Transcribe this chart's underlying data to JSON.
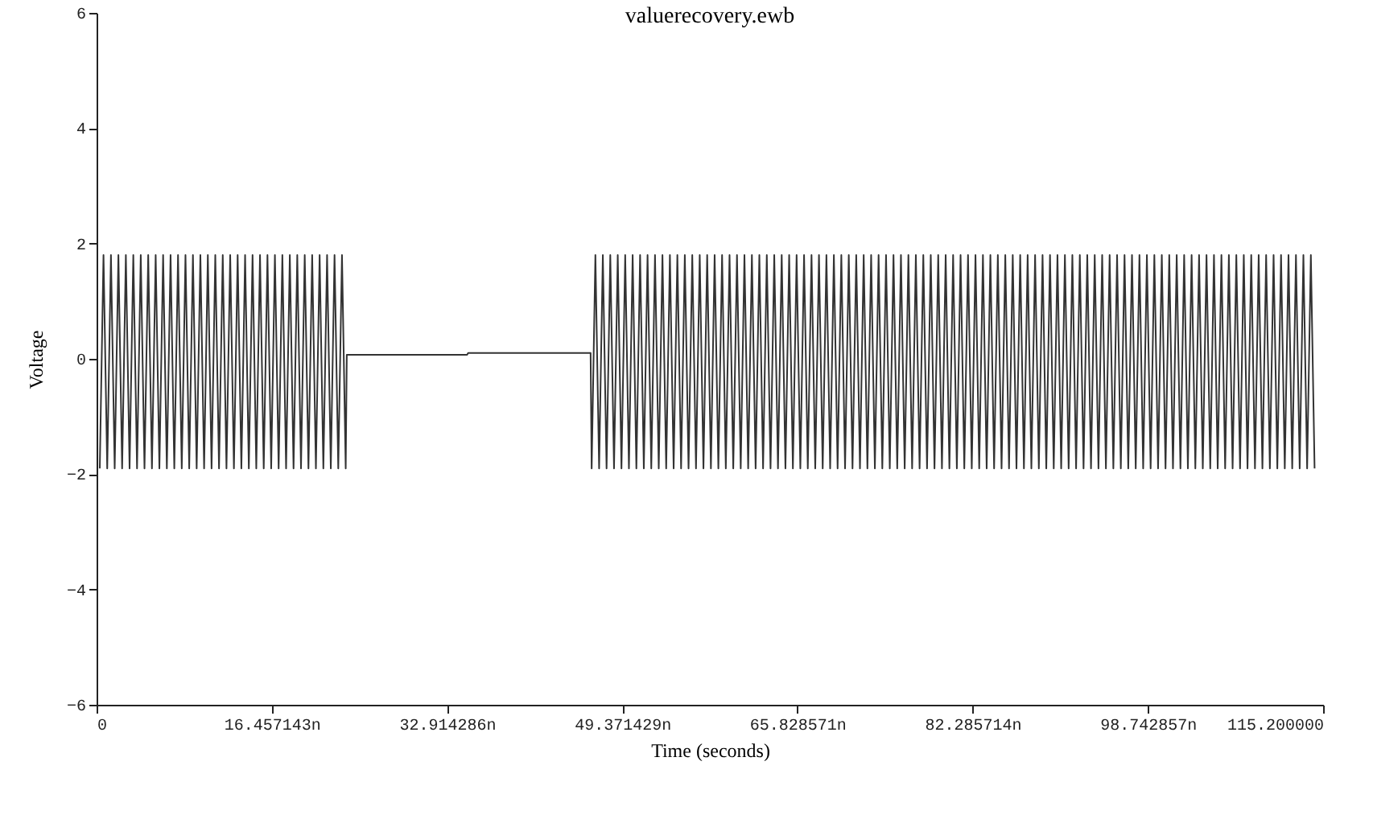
{
  "chart_data": {
    "type": "line",
    "title": "valuerecovery.ewb",
    "xlabel": "Time (seconds)",
    "ylabel": "Voltage",
    "xlim": [
      0,
      115.2
    ],
    "xticks": [
      0,
      {
        "value": 16.457143,
        "label": "16.457143n"
      },
      {
        "value": 32.914286,
        "label": "32.914286n"
      },
      {
        "value": 49.371429,
        "label": "49.371429n"
      },
      {
        "value": 65.828571,
        "label": "65.828571n"
      },
      {
        "value": 82.285714,
        "label": "82.285714n"
      },
      {
        "value": 98.742857,
        "label": "98.742857n"
      },
      {
        "value": 115.2,
        "label": "115.200000"
      }
    ],
    "ylim": [
      -6,
      6
    ],
    "yticks": [
      -6,
      -4,
      -2,
      0,
      2,
      4,
      6
    ],
    "grid": false,
    "series": [
      {
        "color": "#333333",
        "x": [
          0.3,
          0.65,
          1,
          1.35,
          1.7,
          2.05,
          2.4,
          2.75,
          3.1,
          3.45,
          3.8,
          4.15,
          4.5,
          4.85,
          5.2,
          5.55,
          5.9,
          6.25,
          6.6,
          6.95,
          7.3,
          7.65,
          8,
          8.35,
          8.7,
          9.05,
          9.4,
          9.75,
          10.1,
          10.45,
          10.8,
          11.15,
          11.5,
          11.85,
          12.2,
          12.55,
          12.9,
          13.25,
          13.6,
          13.95,
          14.3,
          14.65,
          15,
          15.35,
          15.7,
          16.05,
          16.4,
          16.75,
          17.1,
          17.45,
          17.8,
          18.15,
          18.5,
          18.85,
          19.2,
          19.55,
          19.9,
          20.25,
          20.6,
          20.95,
          21.3,
          21.65,
          22,
          22.35,
          22.7,
          23.05,
          23.4,
          23.5,
          34.8,
          34.9,
          46.4,
          46.5,
          46.85,
          47.2,
          47.55,
          47.9,
          48.25,
          48.6,
          48.95,
          49.3,
          49.65,
          50,
          50.35,
          50.7,
          51.05,
          51.4,
          51.75,
          52.1,
          52.45,
          52.8,
          53.15,
          53.5,
          53.85,
          54.2,
          54.55,
          54.9,
          55.25,
          55.6,
          55.95,
          56.3,
          56.65,
          57,
          57.35,
          57.7,
          58.05,
          58.4,
          58.75,
          59.1,
          59.45,
          59.8,
          60.15,
          60.5,
          60.85,
          61.2,
          61.55,
          61.9,
          62.25,
          62.6,
          62.95,
          63.3,
          63.65,
          64,
          64.35,
          64.7,
          65.05,
          65.4,
          65.75,
          66.1,
          66.45,
          66.8,
          67.15,
          67.5,
          67.85,
          68.2,
          68.55,
          68.9,
          69.25,
          69.6,
          69.95,
          70.3,
          70.65,
          71,
          71.35,
          71.7,
          72.05,
          72.4,
          72.75,
          73.1,
          73.45,
          73.8,
          74.15,
          74.5,
          74.85,
          75.2,
          75.55,
          75.9,
          76.25,
          76.6,
          76.95,
          77.3,
          77.65,
          78,
          78.35,
          78.7,
          79.05,
          79.4,
          79.75,
          80.1,
          80.45,
          80.8,
          81.15,
          81.5,
          81.85,
          82.2,
          82.55,
          82.9,
          83.25,
          83.6,
          83.95,
          84.3,
          84.65,
          85,
          85.35,
          85.7,
          86.05,
          86.4,
          86.75,
          87.1,
          87.45,
          87.8,
          88.15,
          88.5,
          88.85,
          89.2,
          89.55,
          89.9,
          90.25,
          90.6,
          90.95,
          91.3,
          91.65,
          92,
          92.35,
          92.7,
          93.05,
          93.4,
          93.75,
          94.1,
          94.45,
          94.8,
          95.15,
          95.5,
          95.85,
          96.2,
          96.55,
          96.9,
          97.25,
          97.6,
          97.95,
          98.3,
          98.65,
          99,
          99.35,
          99.7,
          100.05,
          100.4,
          100.75,
          101.1,
          101.45,
          101.8,
          102.15,
          102.5,
          102.85,
          103.2,
          103.55,
          103.9,
          104.25,
          104.6,
          104.95,
          105.3,
          105.65,
          106,
          106.35,
          106.7,
          107.05,
          107.4,
          107.75,
          108.1,
          108.45,
          108.8,
          109.15,
          109.5,
          109.85,
          110.2,
          110.55,
          110.9,
          111.25,
          111.6,
          111.95,
          112.3,
          112.65,
          113,
          113.35,
          113.7,
          114.05,
          114.4
        ],
        "values": [
          -1.9,
          1.8,
          -1.9,
          1.8,
          -1.9,
          1.8,
          -1.9,
          1.8,
          -1.9,
          1.8,
          -1.9,
          1.8,
          -1.9,
          1.8,
          -1.9,
          1.8,
          -1.9,
          1.8,
          -1.9,
          1.8,
          -1.9,
          1.8,
          -1.9,
          1.8,
          -1.9,
          1.8,
          -1.9,
          1.8,
          -1.9,
          1.8,
          -1.9,
          1.8,
          -1.9,
          1.8,
          -1.9,
          1.8,
          -1.9,
          1.8,
          -1.9,
          1.8,
          -1.9,
          1.8,
          -1.9,
          1.8,
          -1.9,
          1.8,
          -1.9,
          1.8,
          -1.9,
          1.8,
          -1.9,
          1.8,
          -1.9,
          1.8,
          -1.9,
          1.8,
          -1.9,
          1.8,
          -1.9,
          1.8,
          -1.9,
          1.8,
          -1.9,
          1.8,
          -1.9,
          1.8,
          -1.9,
          0.07,
          0.07,
          0.1,
          0.1,
          -1.9,
          1.8,
          -1.9,
          1.8,
          -1.9,
          1.8,
          -1.9,
          1.8,
          -1.9,
          1.8,
          -1.9,
          1.8,
          -1.9,
          1.8,
          -1.9,
          1.8,
          -1.9,
          1.8,
          -1.9,
          1.8,
          -1.9,
          1.8,
          -1.9,
          1.8,
          -1.9,
          1.8,
          -1.9,
          1.8,
          -1.9,
          1.8,
          -1.9,
          1.8,
          -1.9,
          1.8,
          -1.9,
          1.8,
          -1.9,
          1.8,
          -1.9,
          1.8,
          -1.9,
          1.8,
          -1.9,
          1.8,
          -1.9,
          1.8,
          -1.9,
          1.8,
          -1.9,
          1.8,
          -1.9,
          1.8,
          -1.9,
          1.8,
          -1.9,
          1.8,
          -1.9,
          1.8,
          -1.9,
          1.8,
          -1.9,
          1.8,
          -1.9,
          1.8,
          -1.9,
          1.8,
          -1.9,
          1.8,
          -1.9,
          1.8,
          -1.9,
          1.8,
          -1.9,
          1.8,
          -1.9,
          1.8,
          -1.9,
          1.8,
          -1.9,
          1.8,
          -1.9,
          1.8,
          -1.9,
          1.8,
          -1.9,
          1.8,
          -1.9,
          1.8,
          -1.9,
          1.8,
          -1.9,
          1.8,
          -1.9,
          1.8,
          -1.9,
          1.8,
          -1.9,
          1.8,
          -1.9,
          1.8,
          -1.9,
          1.8,
          -1.9,
          1.8,
          -1.9,
          1.8,
          -1.9,
          1.8,
          -1.9,
          1.8,
          -1.9,
          1.8,
          -1.9,
          1.8,
          -1.9,
          1.8,
          -1.9,
          1.8,
          -1.9,
          1.8,
          -1.9,
          1.8,
          -1.9,
          1.8,
          -1.9,
          1.8,
          -1.9,
          1.8,
          -1.9,
          1.8,
          -1.9,
          1.8,
          -1.9,
          1.8,
          -1.9,
          1.8,
          -1.9,
          1.8,
          -1.9,
          1.8,
          -1.9,
          1.8,
          -1.9,
          1.8,
          -1.9,
          1.8,
          -1.9,
          1.8,
          -1.9,
          1.8,
          -1.9,
          1.8,
          -1.9,
          1.8,
          -1.9,
          1.8,
          -1.9,
          1.8,
          -1.9,
          1.8,
          -1.9,
          1.8,
          -1.9,
          1.8,
          -1.9,
          1.8,
          -1.9,
          1.8,
          -1.9,
          1.8,
          -1.9,
          1.8,
          -1.9,
          1.8,
          -1.9,
          1.8,
          -1.9,
          1.8,
          -1.9,
          1.8,
          -1.9,
          1.8,
          -1.9,
          1.8,
          -1.9,
          1.8,
          -1.9,
          1.8,
          -1.9,
          1.8,
          -1.9,
          1.8,
          -1.9,
          1.8,
          -1.9
        ]
      }
    ]
  }
}
